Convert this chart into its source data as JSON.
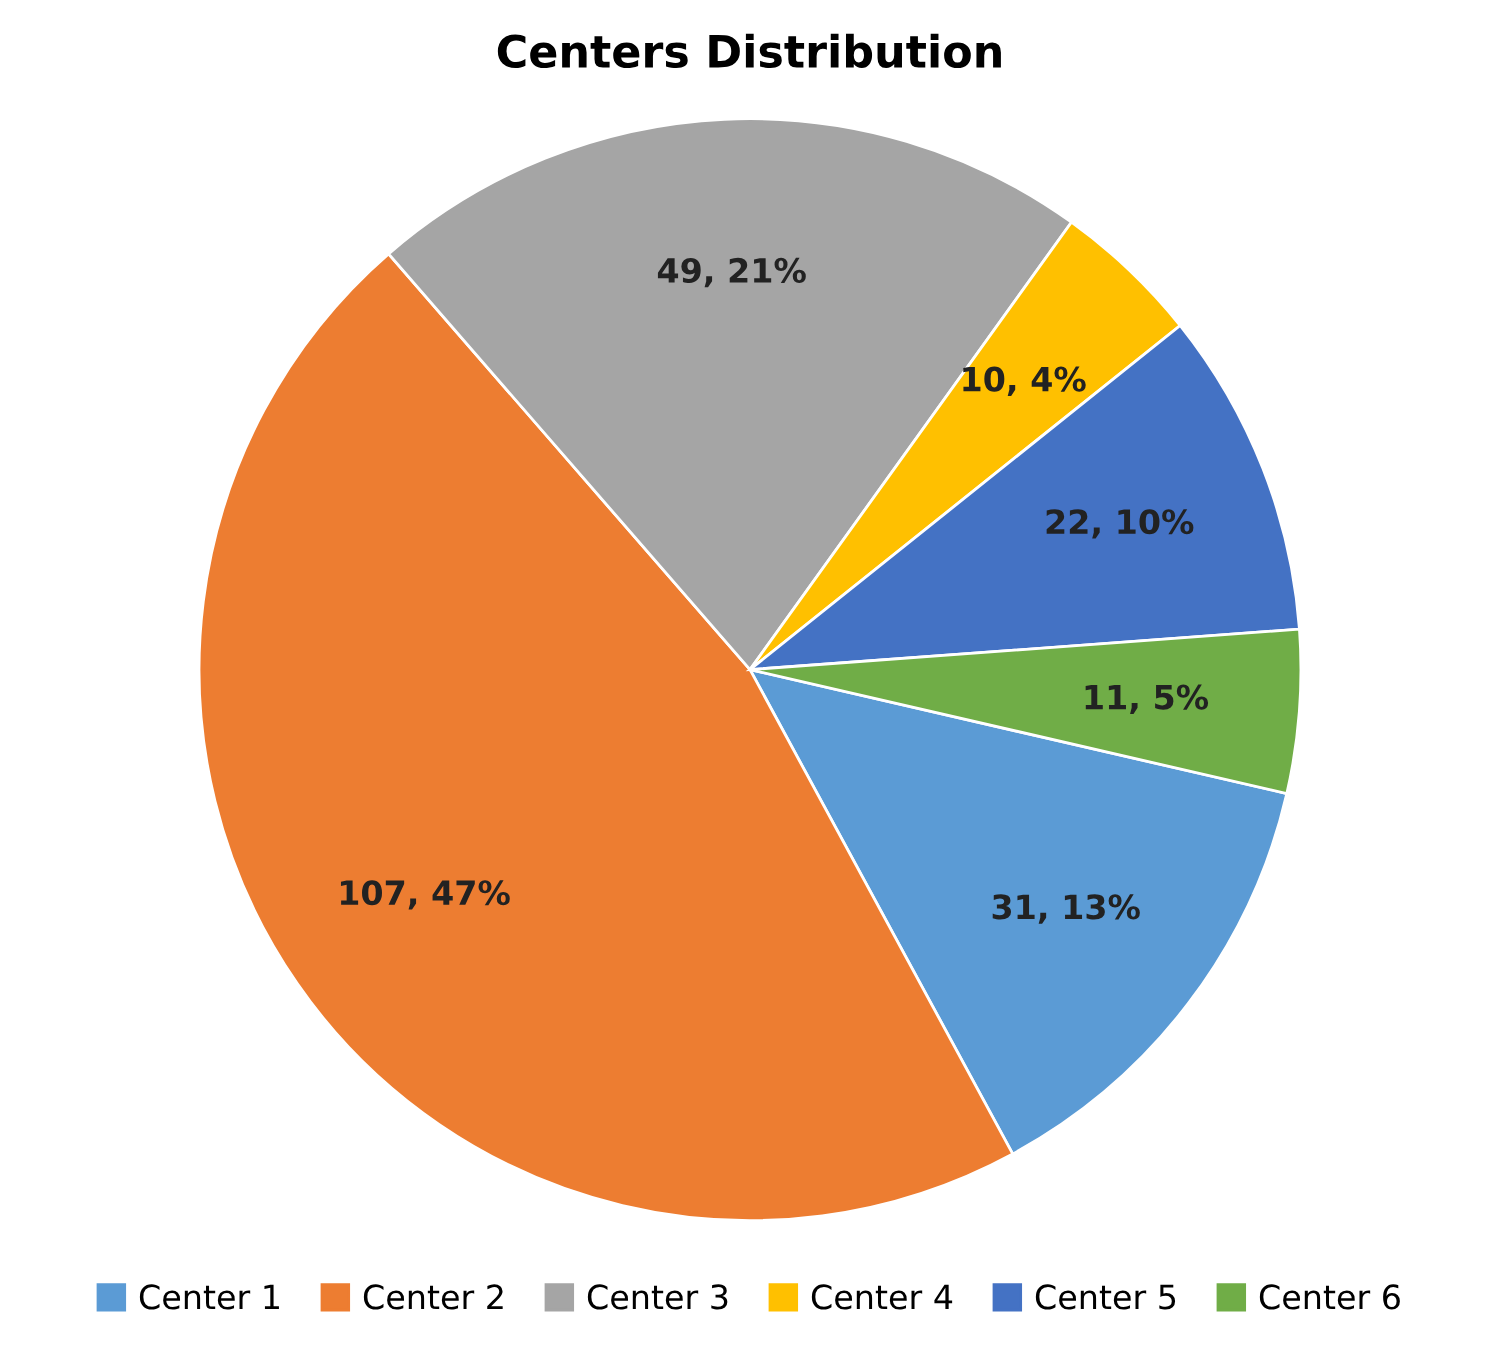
{
  "chart_data": {
    "type": "pie",
    "title": "Centers Distribution",
    "categories": [
      "Center 1",
      "Center 2",
      "Center 3",
      "Center 4",
      "Center 5",
      "Center 6"
    ],
    "values": [
      31,
      107,
      49,
      10,
      22,
      11
    ],
    "value_labels": [
      "31, 13%",
      "107, 47%",
      "49, 21%",
      "10, 4%",
      "22, 10%",
      "11, 5%"
    ],
    "colors": [
      "#5b9bd5",
      "#ed7d31",
      "#a5a5a5",
      "#ffc000",
      "#4472c4",
      "#70ad47"
    ],
    "legend": "bottom"
  }
}
